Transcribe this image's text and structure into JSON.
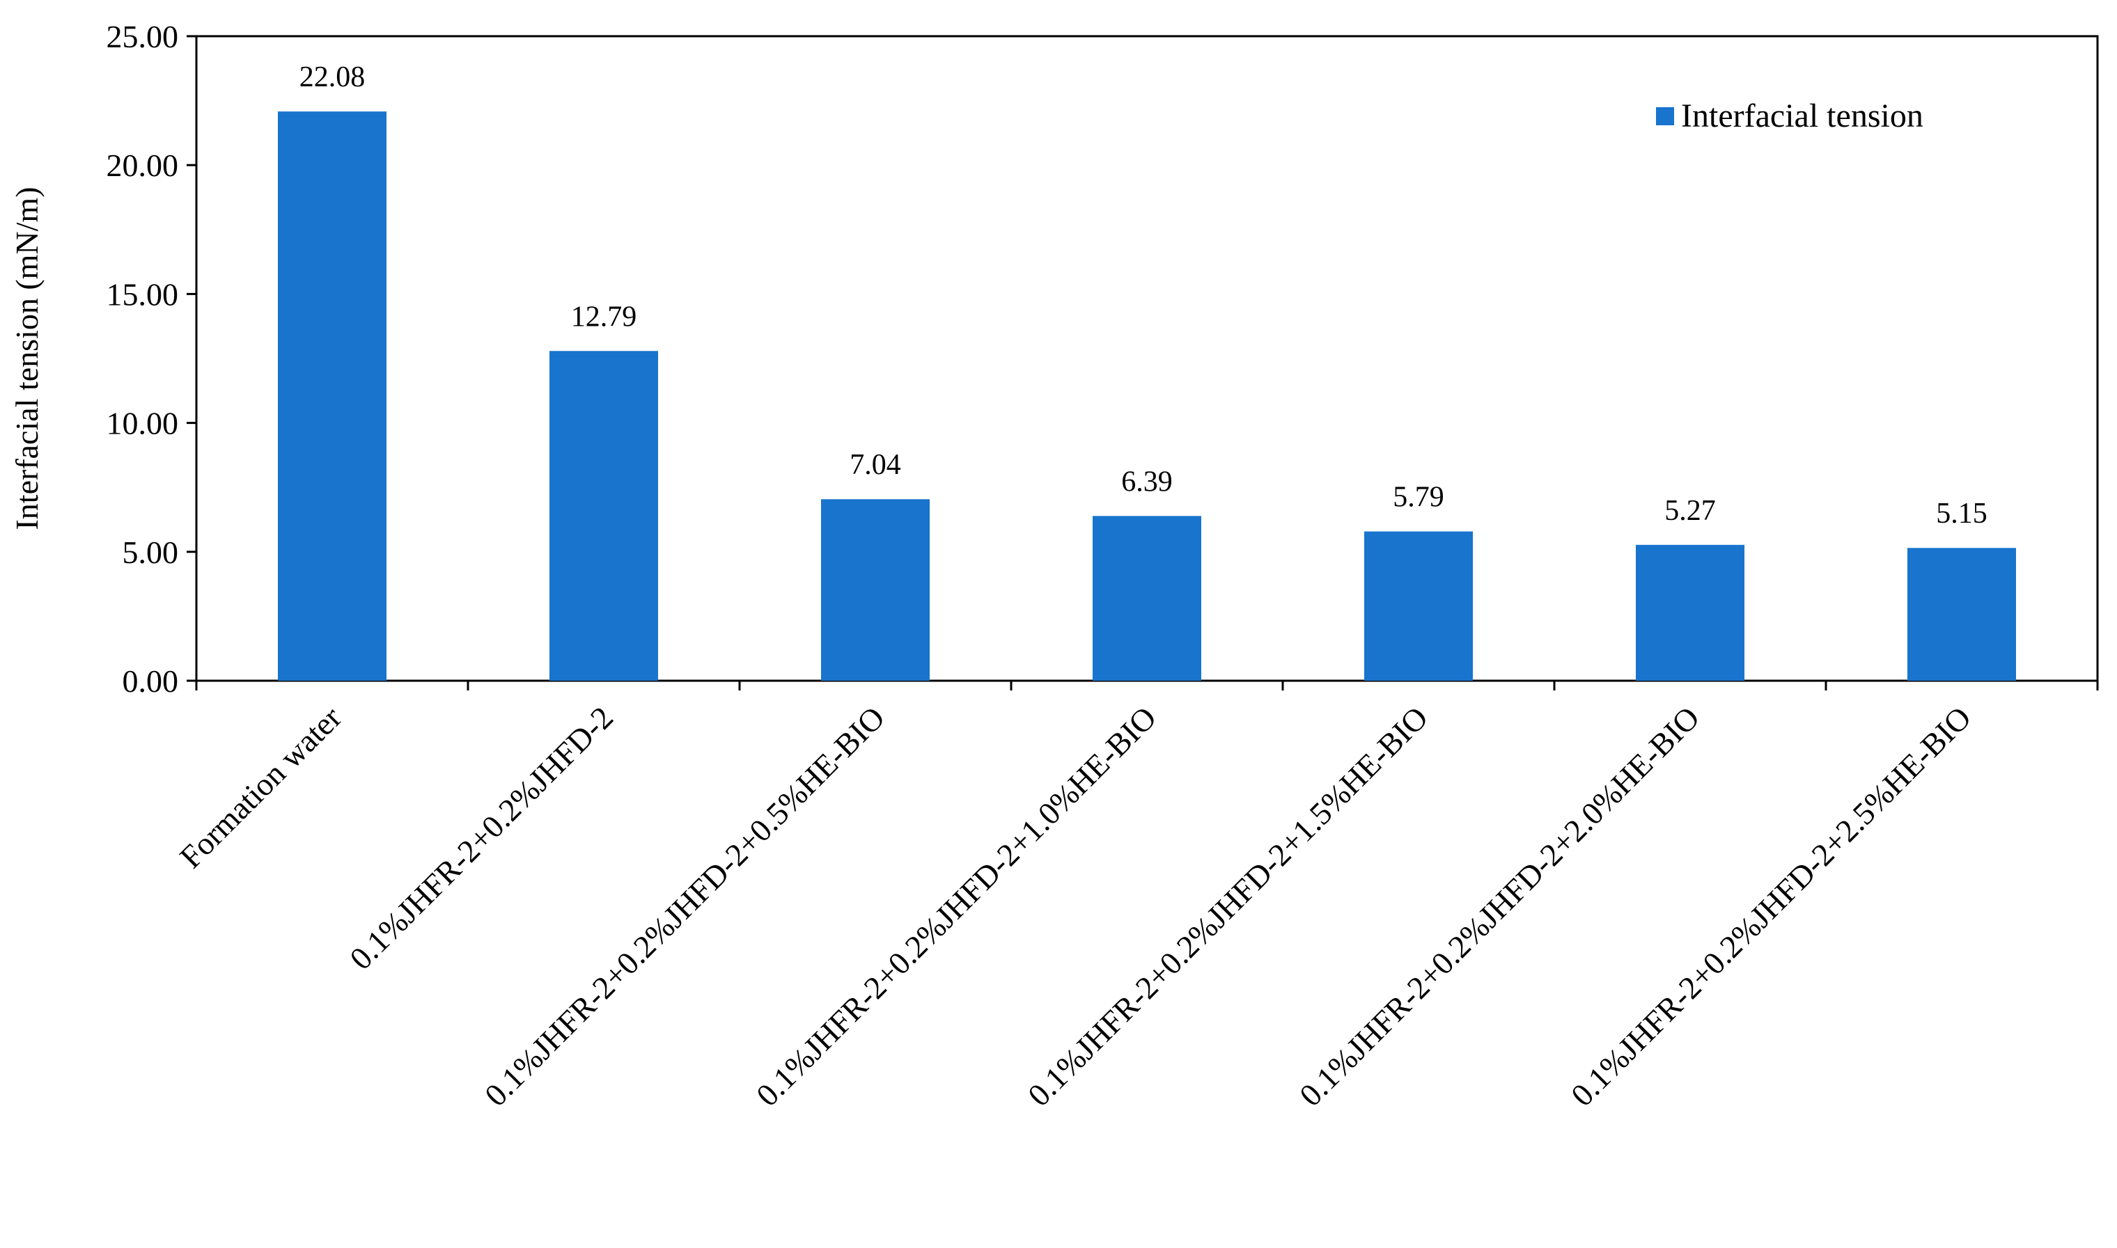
{
  "colors": {
    "bar": "#1874CD",
    "axis": "#000000",
    "background": "#ffffff"
  },
  "chart_data": {
    "type": "bar",
    "title": "",
    "xlabel": "",
    "ylabel": "Interfacial tension (mN/m)",
    "ylim": [
      0,
      25
    ],
    "y_ticks": [
      "0.00",
      "5.00",
      "10.00",
      "15.00",
      "20.00",
      "25.00"
    ],
    "categories": [
      "Formation water",
      "0.1%JHFR-2+0.2%JHFD-2",
      "0.1%JHFR-2+0.2%JHFD-2+0.5%HE-BIO",
      "0.1%JHFR-2+0.2%JHFD-2+1.0%HE-BIO",
      "0.1%JHFR-2+0.2%JHFD-2+1.5%HE-BIO",
      "0.1%JHFR-2+0.2%JHFD-2+2.0%HE-BIO",
      "0.1%JHFR-2+0.2%JHFD-2+2.5%HE-BIO"
    ],
    "series": [
      {
        "name": "Interfacial tension",
        "values": [
          22.08,
          12.79,
          7.04,
          6.39,
          5.79,
          5.27,
          5.15
        ],
        "data_labels": [
          "22.08",
          "12.79",
          "7.04",
          "6.39",
          "5.79",
          "5.27",
          "5.15"
        ]
      }
    ],
    "legend": {
      "position": "top-right",
      "label": "Interfacial tension"
    },
    "grid": false
  }
}
